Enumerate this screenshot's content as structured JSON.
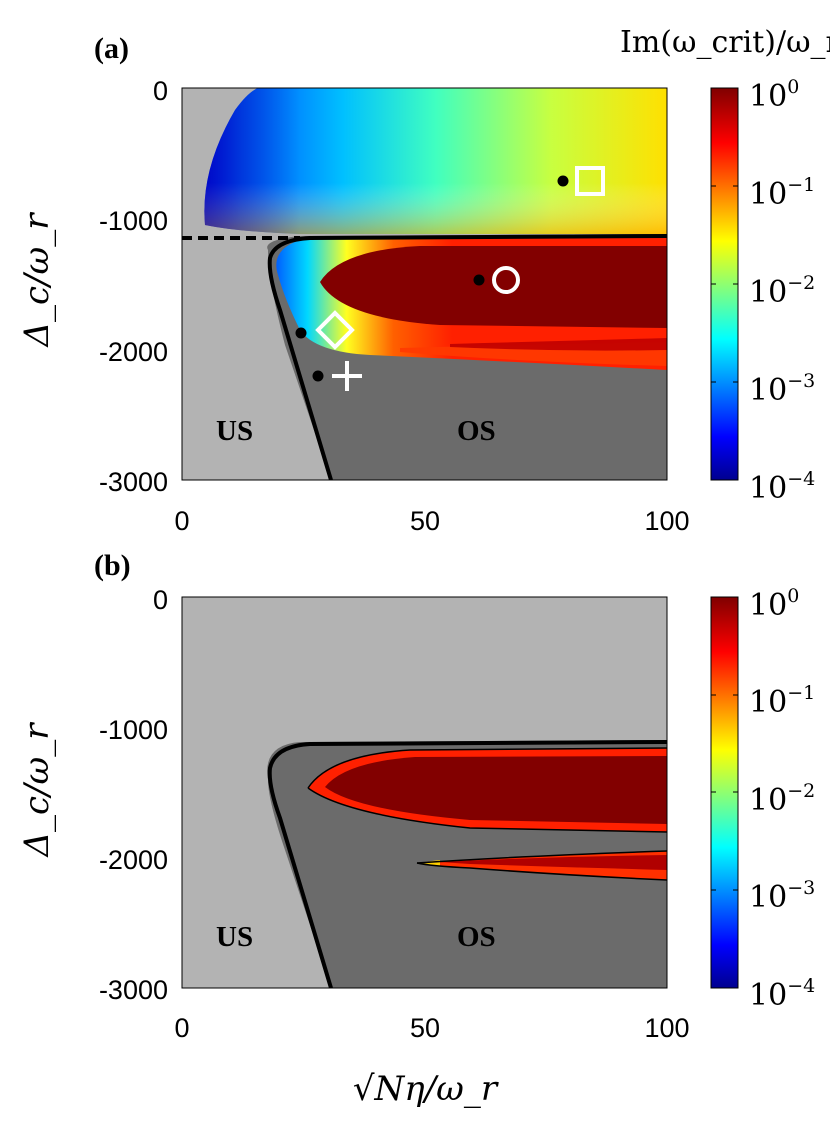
{
  "colorbar_title": "Im(ω_crit)/ω_r",
  "y_axis_label": "Δ_c/ω_r",
  "x_axis_label": "√Nη/ω_r",
  "colors": {
    "us_region": "#b3b3b3",
    "os_region": "#6b6b6b",
    "boundary": "#000000",
    "marker_white": "#ffffff",
    "marker_dot": "#000000"
  },
  "chart_data": [
    {
      "panel": "(a)",
      "type": "heatmap",
      "x_ticks": [
        "0",
        "50",
        "100"
      ],
      "y_ticks": [
        "0",
        "-1000",
        "-2000",
        "-3000"
      ],
      "xlim": [
        0,
        100
      ],
      "ylim": [
        -3000,
        0
      ],
      "colorbar": {
        "scale": "log",
        "range": [
          0.0001,
          1
        ],
        "ticks": [
          "10^0",
          "10^-1",
          "10^-2",
          "10^-3",
          "10^-4"
        ],
        "colormap": "jet"
      },
      "region_labels": [
        "US",
        "OS"
      ],
      "dashed_line_y": -1150,
      "markers": [
        {
          "shape": "square",
          "x": 84,
          "y": -700,
          "dot_x": 79,
          "dot_y": -700
        },
        {
          "shape": "circle",
          "x": 67,
          "y": -1470,
          "dot_x": 62,
          "dot_y": -1470
        },
        {
          "shape": "diamond",
          "x": 32,
          "y": -1840,
          "dot_x": 25,
          "dot_y": -1880
        },
        {
          "shape": "plus",
          "x": 34,
          "y": -2220,
          "dot_x": 28.5,
          "dot_y": -2220
        }
      ]
    },
    {
      "panel": "(b)",
      "type": "heatmap",
      "x_ticks": [
        "0",
        "50",
        "100"
      ],
      "y_ticks": [
        "0",
        "-1000",
        "-2000",
        "-3000"
      ],
      "xlim": [
        0,
        100
      ],
      "ylim": [
        -3000,
        0
      ],
      "colorbar": {
        "scale": "log",
        "range": [
          0.0001,
          1
        ],
        "ticks": [
          "10^0",
          "10^-1",
          "10^-2",
          "10^-3",
          "10^-4"
        ],
        "colormap": "jet"
      },
      "region_labels": [
        "US",
        "OS"
      ]
    }
  ]
}
